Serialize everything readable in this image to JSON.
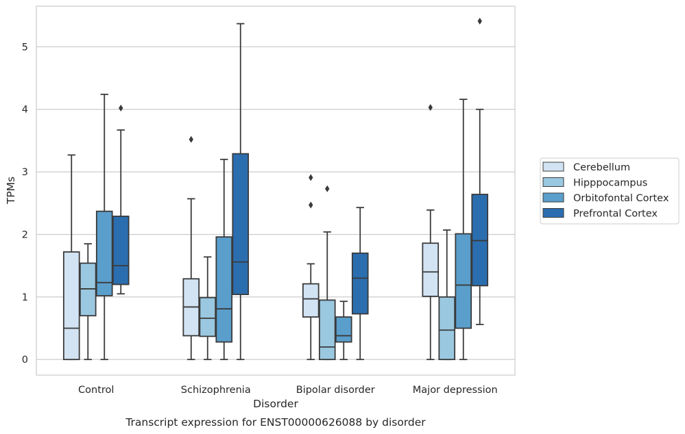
{
  "chart_data": {
    "type": "box",
    "title": "Transcript expression for ENST00000626088 by disorder",
    "xlabel": "Disorder",
    "ylabel": "TPMs",
    "ylim": [
      -0.25,
      5.65
    ],
    "yticks": [
      0,
      1,
      2,
      3,
      4,
      5
    ],
    "grid": "horizontal",
    "legend_position": "right",
    "categories": [
      "Control",
      "Schizophrenia",
      "Bipolar disorder",
      "Major depression"
    ],
    "series": [
      {
        "name": "Cerebellum",
        "color": "#d2e3f3",
        "boxes": [
          {
            "whislo": 0,
            "q1": 0,
            "med": 0.5,
            "q3": 1.72,
            "whishi": 3.27,
            "fliers": []
          },
          {
            "whislo": 0,
            "q1": 0.38,
            "med": 0.84,
            "q3": 1.29,
            "whishi": 2.57,
            "fliers": [
              3.52
            ]
          },
          {
            "whislo": 0,
            "q1": 0.68,
            "med": 0.97,
            "q3": 1.21,
            "whishi": 1.53,
            "fliers": [
              2.47,
              2.91
            ]
          },
          {
            "whislo": 0,
            "q1": 1.01,
            "med": 1.4,
            "q3": 1.86,
            "whishi": 2.39,
            "fliers": [
              4.03
            ]
          }
        ]
      },
      {
        "name": "Hipppocampus",
        "color": "#9ac8e0",
        "boxes": [
          {
            "whislo": 0,
            "q1": 0.7,
            "med": 1.13,
            "q3": 1.54,
            "whishi": 1.85,
            "fliers": []
          },
          {
            "whislo": 0,
            "q1": 0.37,
            "med": 0.66,
            "q3": 0.99,
            "whishi": 1.64,
            "fliers": []
          },
          {
            "whislo": 0,
            "q1": 0,
            "med": 0.2,
            "q3": 0.95,
            "whishi": 2.04,
            "fliers": [
              2.73
            ]
          },
          {
            "whislo": 0,
            "q1": 0,
            "med": 0.47,
            "q3": 1.0,
            "whishi": 2.07,
            "fliers": []
          }
        ]
      },
      {
        "name": "Orbitofontal Cortex",
        "color": "#5a9ecb",
        "boxes": [
          {
            "whislo": 0,
            "q1": 1.02,
            "med": 1.23,
            "q3": 2.37,
            "whishi": 4.24,
            "fliers": []
          },
          {
            "whislo": 0,
            "q1": 0.28,
            "med": 0.81,
            "q3": 1.96,
            "whishi": 3.2,
            "fliers": []
          },
          {
            "whislo": 0,
            "q1": 0.28,
            "med": 0.38,
            "q3": 0.68,
            "whishi": 0.93,
            "fliers": []
          },
          {
            "whislo": 0,
            "q1": 0.5,
            "med": 1.19,
            "q3": 2.01,
            "whishi": 4.16,
            "fliers": []
          }
        ]
      },
      {
        "name": "Prefrontal Cortex",
        "color": "#2b6eaf",
        "boxes": [
          {
            "whislo": 1.05,
            "q1": 1.2,
            "med": 1.5,
            "q3": 2.29,
            "whishi": 3.67,
            "fliers": [
              4.02
            ]
          },
          {
            "whislo": 0,
            "q1": 1.04,
            "med": 1.56,
            "q3": 3.29,
            "whishi": 5.37,
            "fliers": []
          },
          {
            "whislo": 0,
            "q1": 0.73,
            "med": 1.3,
            "q3": 1.7,
            "whishi": 2.43,
            "fliers": []
          },
          {
            "whislo": 0.56,
            "q1": 1.18,
            "med": 1.9,
            "q3": 2.64,
            "whishi": 4.0,
            "fliers": [
              5.41
            ]
          }
        ]
      }
    ]
  }
}
